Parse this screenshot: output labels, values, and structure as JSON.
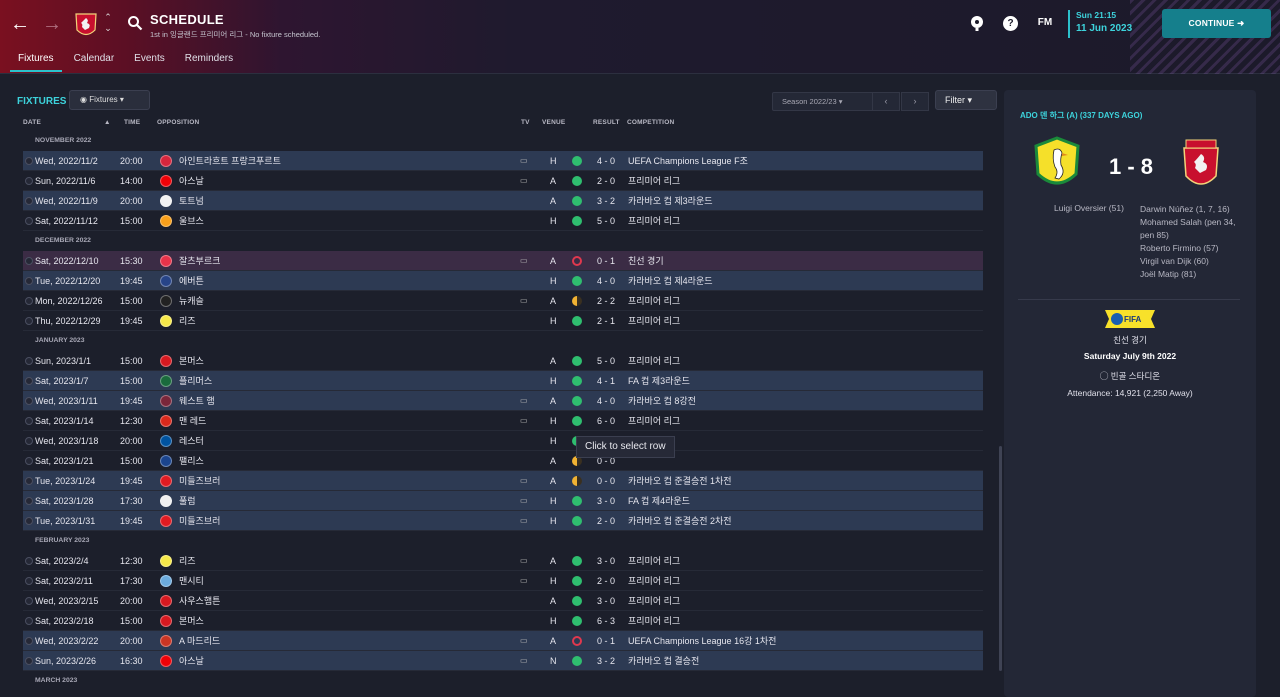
{
  "header": {
    "title": "SCHEDULE",
    "subtitle": "1st in 잉글랜드 프리미어 리그 - No fixture scheduled.",
    "tabs": [
      "Fixtures",
      "Calendar",
      "Events",
      "Reminders"
    ],
    "fm_label": "FM",
    "time": "Sun 21:15",
    "date": "11 Jun 2023",
    "continue_label": "CONTINUE",
    "help_label": "?"
  },
  "toolbar": {
    "section_title": "FIXTURES",
    "view_label": "Fixtures",
    "season_label": "Season 2022/23",
    "filter_label": "Filter"
  },
  "columns": {
    "date": "DATE",
    "time": "TIME",
    "opposition": "OPPOSITION",
    "tv": "TV",
    "venue": "VENUE",
    "result": "RESULT",
    "competition": "COMPETITION"
  },
  "months": [
    {
      "label": "NOVEMBER 2022",
      "rows": [
        {
          "date": "Wed, 2022/11/2",
          "time": "20:00",
          "opp": "아인트라흐트 프랑크푸르트",
          "tv": true,
          "venue": "H",
          "result": "w",
          "score": "4 - 0",
          "comp": "UEFA Champions League F조",
          "hl": true,
          "color": "#d7263d"
        },
        {
          "date": "Sun, 2022/11/6",
          "time": "14:00",
          "opp": "아스날",
          "tv": true,
          "venue": "A",
          "result": "w",
          "score": "2 - 0",
          "comp": "프리미어 리그",
          "hl": false,
          "color": "#ef0107"
        },
        {
          "date": "Wed, 2022/11/9",
          "time": "20:00",
          "opp": "토트넘",
          "tv": false,
          "venue": "A",
          "result": "w",
          "score": "3 - 2",
          "comp": "카라바오 컵 제3라운드",
          "hl": true,
          "color": "#f2f2f2"
        },
        {
          "date": "Sat, 2022/11/12",
          "time": "15:00",
          "opp": "울브스",
          "tv": false,
          "venue": "H",
          "result": "w",
          "score": "5 - 0",
          "comp": "프리미어 리그",
          "hl": false,
          "color": "#f9a01b"
        }
      ]
    },
    {
      "label": "DECEMBER 2022",
      "rows": [
        {
          "date": "Sat, 2022/12/10",
          "time": "15:30",
          "opp": "잘츠부르크",
          "tv": true,
          "venue": "A",
          "result": "l",
          "score": "0 - 1",
          "comp": "친선 경기",
          "hl": "fr",
          "color": "#e8334a"
        },
        {
          "date": "Tue, 2022/12/20",
          "time": "19:45",
          "opp": "에버튼",
          "tv": false,
          "venue": "H",
          "result": "w",
          "score": "4 - 0",
          "comp": "카라바오 컵 제4라운드",
          "hl": true,
          "color": "#274488"
        },
        {
          "date": "Mon, 2022/12/26",
          "time": "15:00",
          "opp": "뉴캐슬",
          "tv": true,
          "venue": "A",
          "result": "d",
          "score": "2 - 2",
          "comp": "프리미어 리그",
          "hl": false,
          "color": "#222222"
        },
        {
          "date": "Thu, 2022/12/29",
          "time": "19:45",
          "opp": "리즈",
          "tv": false,
          "venue": "H",
          "result": "w",
          "score": "2 - 1",
          "comp": "프리미어 리그",
          "hl": false,
          "color": "#f7e94a"
        }
      ]
    },
    {
      "label": "JANUARY 2023",
      "rows": [
        {
          "date": "Sun, 2023/1/1",
          "time": "15:00",
          "opp": "본머스",
          "tv": false,
          "venue": "A",
          "result": "w",
          "score": "5 - 0",
          "comp": "프리미어 리그",
          "hl": false,
          "color": "#d71920"
        },
        {
          "date": "Sat, 2023/1/7",
          "time": "15:00",
          "opp": "플리머스",
          "tv": false,
          "venue": "H",
          "result": "w",
          "score": "4 - 1",
          "comp": "FA 컵 제3라운드",
          "hl": true,
          "color": "#1a6b3c"
        },
        {
          "date": "Wed, 2023/1/11",
          "time": "19:45",
          "opp": "웨스트 햄",
          "tv": true,
          "venue": "A",
          "result": "w",
          "score": "4 - 0",
          "comp": "카라바오 컵 8강전",
          "hl": true,
          "color": "#7a263a"
        },
        {
          "date": "Sat, 2023/1/14",
          "time": "12:30",
          "opp": "맨 레드",
          "tv": true,
          "venue": "H",
          "result": "w",
          "score": "6 - 0",
          "comp": "프리미어 리그",
          "hl": false,
          "color": "#da291c"
        },
        {
          "date": "Wed, 2023/1/18",
          "time": "20:00",
          "opp": "레스터",
          "tv": false,
          "venue": "H",
          "result": "w",
          "score": "",
          "comp": "",
          "hl": false,
          "color": "#0053a0"
        },
        {
          "date": "Sat, 2023/1/21",
          "time": "15:00",
          "opp": "팰리스",
          "tv": false,
          "venue": "A",
          "result": "d",
          "score": "0 - 0",
          "comp": "",
          "hl": false,
          "color": "#1b458f"
        },
        {
          "date": "Tue, 2023/1/24",
          "time": "19:45",
          "opp": "미들즈브러",
          "tv": true,
          "venue": "A",
          "result": "d",
          "score": "0 - 0",
          "comp": "카라바오 컵 준결승전 1차전",
          "hl": true,
          "color": "#e11b22"
        },
        {
          "date": "Sat, 2023/1/28",
          "time": "17:30",
          "opp": "풀럼",
          "tv": true,
          "venue": "H",
          "result": "w",
          "score": "3 - 0",
          "comp": "FA 컵 제4라운드",
          "hl": true,
          "color": "#f0f0f0"
        },
        {
          "date": "Tue, 2023/1/31",
          "time": "19:45",
          "opp": "미들즈브러",
          "tv": true,
          "venue": "H",
          "result": "w",
          "score": "2 - 0",
          "comp": "카라바오 컵 준결승전 2차전",
          "hl": true,
          "color": "#e11b22"
        }
      ]
    },
    {
      "label": "FEBRUARY 2023",
      "rows": [
        {
          "date": "Sat, 2023/2/4",
          "time": "12:30",
          "opp": "리즈",
          "tv": true,
          "venue": "A",
          "result": "w",
          "score": "3 - 0",
          "comp": "프리미어 리그",
          "hl": false,
          "color": "#f7e94a"
        },
        {
          "date": "Sat, 2023/2/11",
          "time": "17:30",
          "opp": "맨시티",
          "tv": true,
          "venue": "H",
          "result": "w",
          "score": "2 - 0",
          "comp": "프리미어 리그",
          "hl": false,
          "color": "#6cabdd"
        },
        {
          "date": "Wed, 2023/2/15",
          "time": "20:00",
          "opp": "사우스햄튼",
          "tv": false,
          "venue": "A",
          "result": "w",
          "score": "3 - 0",
          "comp": "프리미어 리그",
          "hl": false,
          "color": "#d71920"
        },
        {
          "date": "Sat, 2023/2/18",
          "time": "15:00",
          "opp": "본머스",
          "tv": false,
          "venue": "H",
          "result": "w",
          "score": "6 - 3",
          "comp": "프리미어 리그",
          "hl": false,
          "color": "#d71920"
        },
        {
          "date": "Wed, 2023/2/22",
          "time": "20:00",
          "opp": "A 마드리드",
          "tv": true,
          "venue": "A",
          "result": "l",
          "score": "0 - 1",
          "comp": "UEFA Champions League 16강 1차전",
          "hl": true,
          "color": "#cb3524"
        },
        {
          "date": "Sun, 2023/2/26",
          "time": "16:30",
          "opp": "아스날",
          "tv": true,
          "venue": "N",
          "result": "w",
          "score": "3 - 2",
          "comp": "카라바오 컵 결승전",
          "hl": true,
          "color": "#ef0107"
        }
      ]
    },
    {
      "label": "MARCH 2023",
      "rows": []
    }
  ],
  "tooltip": "Click to select row",
  "panel": {
    "header": "ADO 덴 하그 (A) (337 DAYS AGO)",
    "score": "1 - 8",
    "home_scorers": [
      "Luigi Oversier (51)"
    ],
    "away_scorers": [
      "Darwin Núñez (1, 7, 16)",
      "Mohamed Salah (pen 34, pen 85)",
      "Roberto Firmino (57)",
      "Virgil van Dijk (60)",
      "Joël Matip (81)"
    ],
    "competition": "친선 경기",
    "match_date": "Saturday July 9th 2022",
    "stadium": "빈골 스타디온",
    "attendance": "Attendance: 14,921 (2,250 Away)",
    "badge_text": "FIFA"
  }
}
